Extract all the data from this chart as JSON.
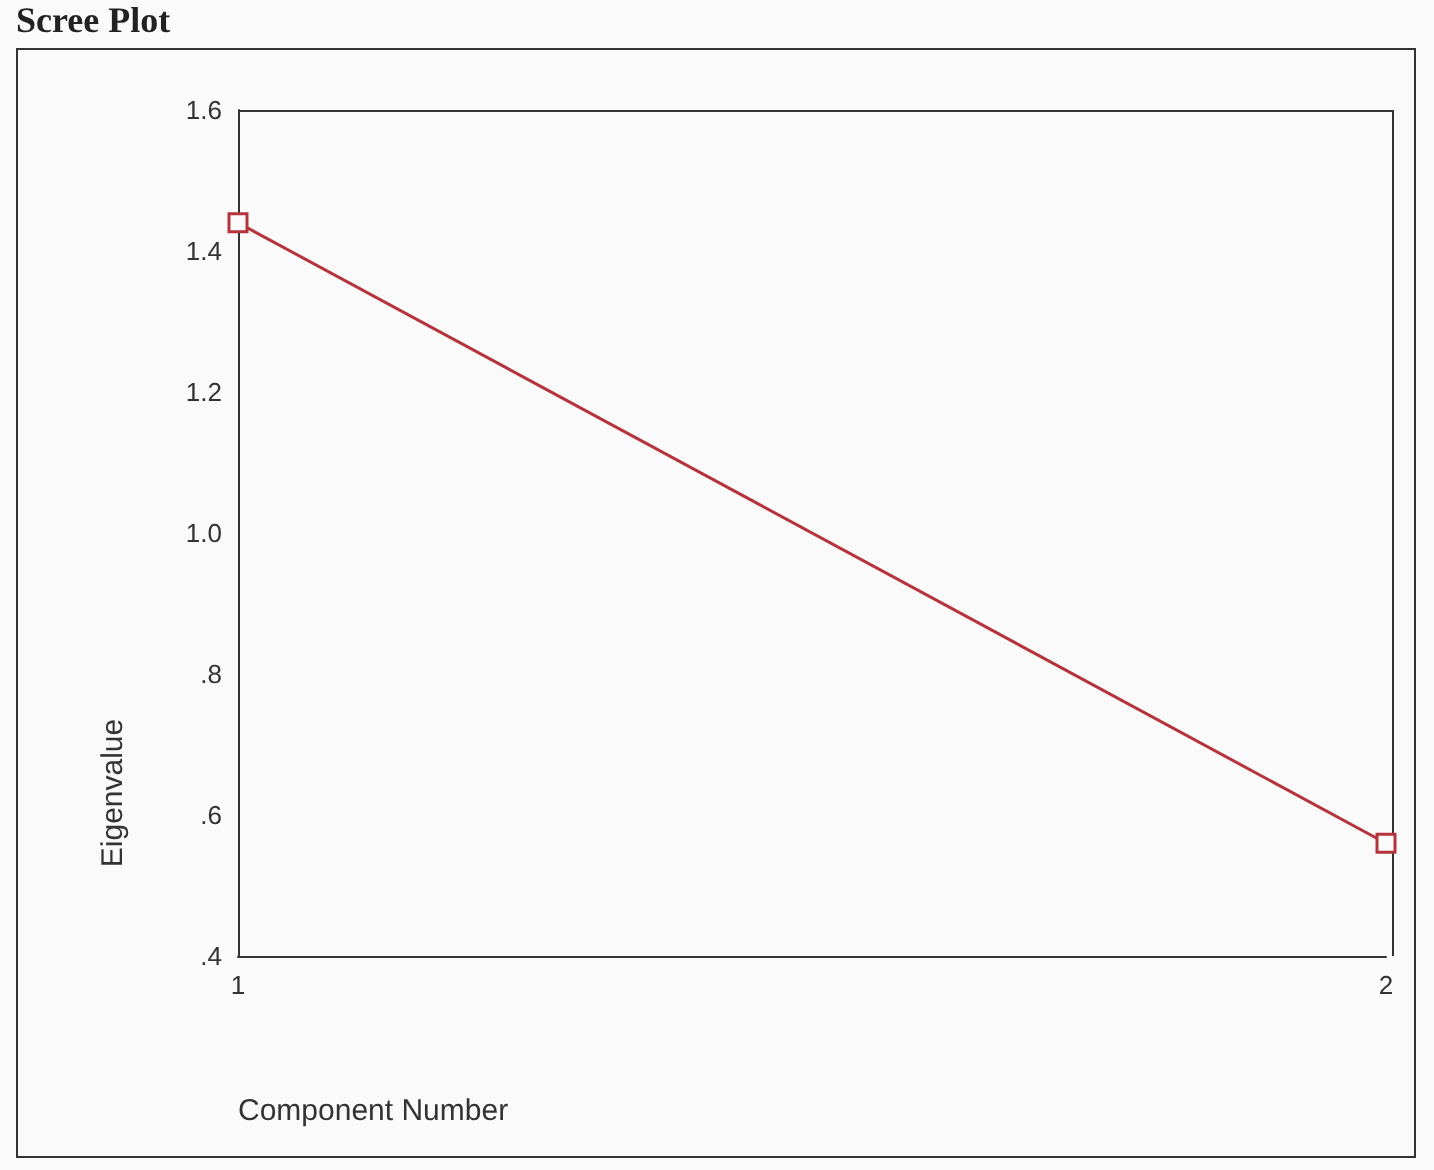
{
  "chart_data": {
    "type": "line",
    "title": "Scree Plot",
    "xlabel": "Component Number",
    "ylabel": "Eigenvalue",
    "categories": [
      "1",
      "2"
    ],
    "series": [
      {
        "color": "#b5343c",
        "values": [
          1.44,
          0.56
        ]
      }
    ],
    "ylim": [
      0.4,
      1.6
    ],
    "yticks": [
      {
        "value": 0.4,
        "label": ".4"
      },
      {
        "value": 0.6,
        "label": ".6"
      },
      {
        "value": 0.8,
        "label": ".8"
      },
      {
        "value": 1.0,
        "label": "1.0"
      },
      {
        "value": 1.2,
        "label": "1.2"
      },
      {
        "value": 1.4,
        "label": "1.4"
      },
      {
        "value": 1.6,
        "label": "1.6"
      }
    ],
    "marker": "square"
  }
}
